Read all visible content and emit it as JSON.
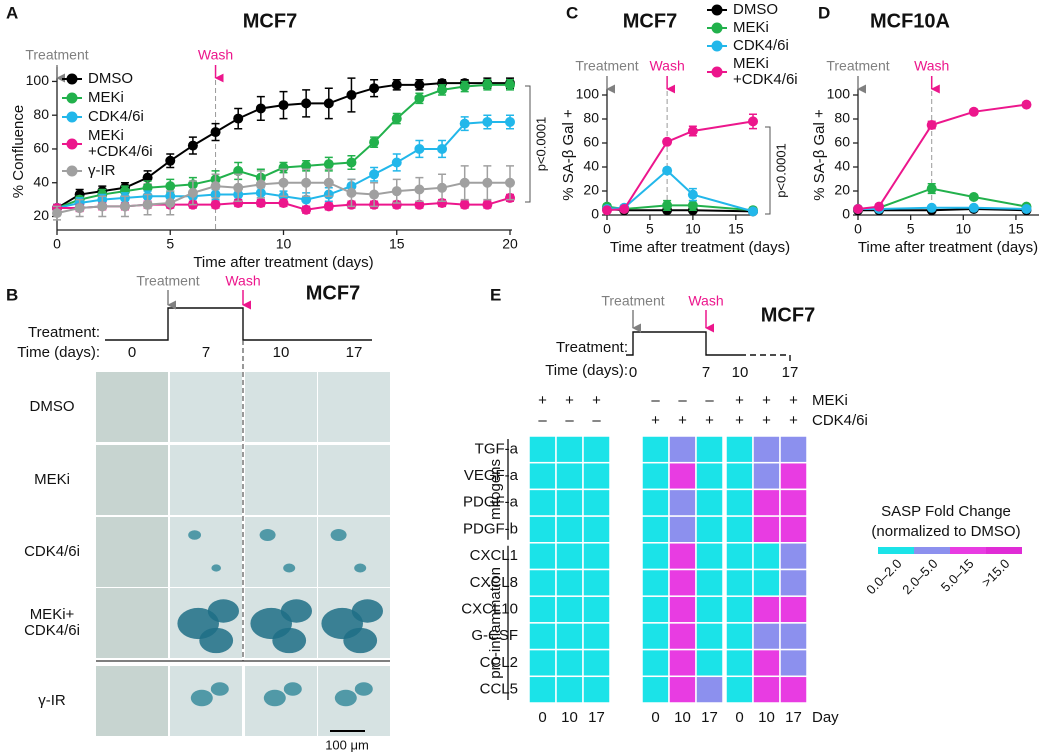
{
  "chart_data": [
    {
      "type": "line",
      "panel": "A",
      "title": "MCF7",
      "x_label": "Time after treatment (days)",
      "y_label": "% Confluence",
      "xlim": [
        0,
        20
      ],
      "ylim": [
        12,
        105
      ],
      "xticks": [
        0,
        5,
        10,
        15,
        20
      ],
      "yticks": [
        20,
        40,
        60,
        80,
        100
      ],
      "events": [
        {
          "label": "Treatment",
          "x": 0,
          "color": "#808080"
        },
        {
          "label": "Wash",
          "x": 7,
          "color": "#ec168c",
          "dashed_line": true
        }
      ],
      "annotation": "p<0.0001",
      "legend": true,
      "x": [
        0,
        1,
        2,
        3,
        4,
        5,
        6,
        7,
        8,
        9,
        10,
        11,
        12,
        13,
        14,
        15,
        16,
        17,
        18,
        19,
        20
      ],
      "series": [
        {
          "name": "DMSO",
          "color": "#000000",
          "values": [
            25,
            33,
            35,
            37,
            43,
            53,
            62,
            70,
            78,
            84,
            86,
            87,
            87,
            92,
            96,
            98,
            98,
            99,
            99,
            99,
            99
          ],
          "errors": [
            2,
            3,
            3,
            3,
            4,
            4,
            5,
            5,
            6,
            7,
            8,
            8,
            9,
            10,
            5,
            3,
            3,
            2,
            2,
            3,
            3
          ]
        },
        {
          "name": "MEKi",
          "color": "#22b14c",
          "values": [
            25,
            30,
            33,
            35,
            37,
            38,
            39,
            42,
            47,
            43,
            49,
            50,
            51,
            52,
            64,
            78,
            90,
            95,
            97,
            98,
            98
          ],
          "errors": [
            2,
            2,
            3,
            3,
            4,
            4,
            4,
            5,
            5,
            5,
            3,
            3,
            4,
            4,
            3,
            3,
            3,
            3,
            3,
            3,
            3
          ]
        },
        {
          "name": "CDK4/6i",
          "color": "#22b7ea",
          "values": [
            25,
            28,
            30,
            31,
            32,
            32,
            32,
            33,
            33,
            34,
            32,
            30,
            33,
            38,
            45,
            52,
            60,
            60,
            75,
            76,
            76
          ],
          "errors": [
            2,
            3,
            3,
            3,
            3,
            3,
            3,
            3,
            3,
            3,
            3,
            4,
            4,
            4,
            4,
            5,
            5,
            5,
            4,
            4,
            4
          ]
        },
        {
          "name": "MEKi\n+CDK4/6i",
          "color": "#ec168c",
          "values": [
            25,
            25,
            26,
            26,
            27,
            27,
            27,
            27,
            28,
            28,
            28,
            24,
            26,
            27,
            27,
            27,
            27,
            28,
            27,
            27,
            31
          ],
          "errors": [
            2,
            2,
            2,
            2,
            2,
            2,
            2,
            2,
            2,
            2,
            2,
            2,
            2,
            2,
            2,
            2,
            2,
            2,
            2,
            2,
            2
          ]
        },
        {
          "name": "γ-IR",
          "color": "#a0a0a0",
          "values": [
            22,
            25,
            26,
            26,
            27,
            28,
            34,
            38,
            37,
            39,
            40,
            40,
            40,
            34,
            33,
            35,
            36,
            37,
            40,
            40,
            40
          ],
          "errors": [
            4,
            5,
            6,
            6,
            6,
            7,
            7,
            7,
            8,
            8,
            8,
            8,
            8,
            8,
            7,
            7,
            7,
            8,
            10,
            10,
            10
          ]
        }
      ]
    },
    {
      "type": "line",
      "panel": "C",
      "title": "MCF7",
      "x_label": "Time after treatment (days)",
      "y_label": "% SA-β Gal +",
      "xlim": [
        0,
        17
      ],
      "ylim": [
        0,
        100
      ],
      "xticks": [
        0,
        5,
        10,
        15
      ],
      "yticks": [
        0,
        20,
        40,
        60,
        80,
        100
      ],
      "events": [
        {
          "label": "Treatment",
          "x": 0,
          "color": "#808080"
        },
        {
          "label": "Wash",
          "x": 7,
          "color": "#ec168c",
          "dashed_line": true
        }
      ],
      "annotation": "p<0.0001",
      "legend": true,
      "x": [
        0,
        2,
        7,
        10,
        17
      ],
      "series": [
        {
          "name": "DMSO",
          "color": "#000000",
          "values": [
            5,
            4,
            4,
            4,
            3
          ],
          "errors": [
            2,
            1,
            2,
            1,
            1
          ]
        },
        {
          "name": "MEKi",
          "color": "#22b14c",
          "values": [
            7,
            5,
            8,
            8,
            4
          ],
          "errors": [
            2,
            2,
            4,
            4,
            1
          ]
        },
        {
          "name": "CDK4/6i",
          "color": "#22b7ea",
          "values": [
            5,
            6,
            37,
            17,
            3
          ],
          "errors": [
            1,
            2,
            2,
            5,
            1
          ]
        },
        {
          "name": "MEKi\n+CDK4/6i",
          "color": "#ec168c",
          "values": [
            4,
            5,
            61,
            70,
            78
          ],
          "errors": [
            1,
            2,
            2,
            4,
            6
          ]
        }
      ]
    },
    {
      "type": "line",
      "panel": "D",
      "title": "MCF10A",
      "x_label": "Time after treatment (days)",
      "y_label": "% SA-β Gal +",
      "xlim": [
        0,
        17
      ],
      "ylim": [
        0,
        100
      ],
      "xticks": [
        0,
        5,
        10,
        15
      ],
      "yticks": [
        0,
        20,
        40,
        60,
        80,
        100
      ],
      "events": [
        {
          "label": "Treatment",
          "x": 0,
          "color": "#808080"
        },
        {
          "label": "Wash",
          "x": 7,
          "color": "#ec168c",
          "dashed_line": true
        }
      ],
      "legend": false,
      "x": [
        0,
        2,
        7,
        11,
        16
      ],
      "series": [
        {
          "name": "DMSO",
          "color": "#000000",
          "values": [
            4,
            4,
            4,
            5,
            4
          ],
          "errors": [
            1,
            1,
            1,
            1,
            1
          ]
        },
        {
          "name": "MEKi",
          "color": "#22b14c",
          "values": [
            5,
            6,
            22,
            15,
            7
          ],
          "errors": [
            1,
            1,
            4,
            2,
            1
          ]
        },
        {
          "name": "CDK4/6i",
          "color": "#22b7ea",
          "values": [
            5,
            5,
            6,
            6,
            5
          ],
          "errors": [
            1,
            1,
            1,
            1,
            1
          ]
        },
        {
          "name": "MEKi\n+CDK4/6i",
          "color": "#ec168c",
          "values": [
            5,
            7,
            75,
            86,
            92
          ],
          "errors": [
            1,
            1,
            3,
            2,
            2
          ]
        }
      ]
    },
    {
      "type": "heatmap",
      "panel": "E",
      "title": "MCF7",
      "events": [
        {
          "label": "Treatment",
          "color": "#808080"
        },
        {
          "label": "Wash",
          "color": "#ec168c"
        }
      ],
      "timeline_labels": [
        "Treatment:",
        "Time (days):"
      ],
      "timeline_days": [
        0,
        7,
        10,
        17
      ],
      "conditions": [
        {
          "name": "MEKi",
          "signs": [
            "+",
            "+",
            "+",
            "–",
            "–",
            "–",
            "+",
            "+",
            "+"
          ]
        },
        {
          "name": "CDK4/6i",
          "signs": [
            "–",
            "–",
            "–",
            "+",
            "+",
            "+",
            "+",
            "+",
            "+"
          ]
        }
      ],
      "x": [
        0,
        10,
        17,
        0,
        10,
        17,
        0,
        10,
        17
      ],
      "x_label": "Day",
      "row_groups": [
        {
          "label": "mitogens",
          "rows": [
            "TGF-a",
            "VEGF-a",
            "PDGF-a",
            "PDGF-b"
          ]
        },
        {
          "label": "pro-inflammation",
          "rows": [
            "CXCL1",
            "CXCL8",
            "CXCL10",
            "G-CSF",
            "CCL2",
            "CCL5"
          ]
        }
      ],
      "values": [
        [
          0,
          0,
          0,
          0,
          1,
          0,
          0,
          1,
          1
        ],
        [
          0,
          0,
          0,
          0,
          2,
          0,
          0,
          1,
          2
        ],
        [
          0,
          0,
          0,
          0,
          1,
          0,
          0,
          2,
          2
        ],
        [
          0,
          0,
          0,
          0,
          1,
          0,
          0,
          2,
          2
        ],
        [
          0,
          0,
          0,
          0,
          2,
          0,
          0,
          0,
          1
        ],
        [
          0,
          0,
          0,
          0,
          2,
          0,
          0,
          0,
          1
        ],
        [
          0,
          0,
          0,
          0,
          2,
          0,
          0,
          2,
          2
        ],
        [
          0,
          0,
          0,
          0,
          2,
          0,
          0,
          1,
          1
        ],
        [
          0,
          0,
          0,
          0,
          2,
          0,
          0,
          2,
          1
        ],
        [
          0,
          0,
          0,
          0,
          2,
          1,
          0,
          2,
          2
        ]
      ],
      "legend_title": [
        "SASP Fold Change",
        "(normalized to DMSO)"
      ],
      "scale": [
        {
          "label": "0.0–2.0",
          "color": "#1be3e8"
        },
        {
          "label": "2.0–5.0",
          "color": "#8c90ee"
        },
        {
          "label": "5.0–15",
          "color": "#e83ce2"
        },
        {
          "label": ">15.0",
          "color": "#e02cd6"
        }
      ]
    }
  ],
  "panel_b": {
    "panel": "B",
    "title": "MCF7",
    "events": [
      {
        "label": "Treatment",
        "color": "#808080"
      },
      {
        "label": "Wash",
        "color": "#ec168c"
      }
    ],
    "timeline_labels": [
      "Treatment:",
      "Time (days):"
    ],
    "days": [
      0,
      7,
      10,
      17
    ],
    "rows": [
      "DMSO",
      "MEKi",
      "CDK4/6i",
      "MEKi+\nCDK4/6i",
      "γ-IR"
    ],
    "scale_bar": "100 μm"
  }
}
